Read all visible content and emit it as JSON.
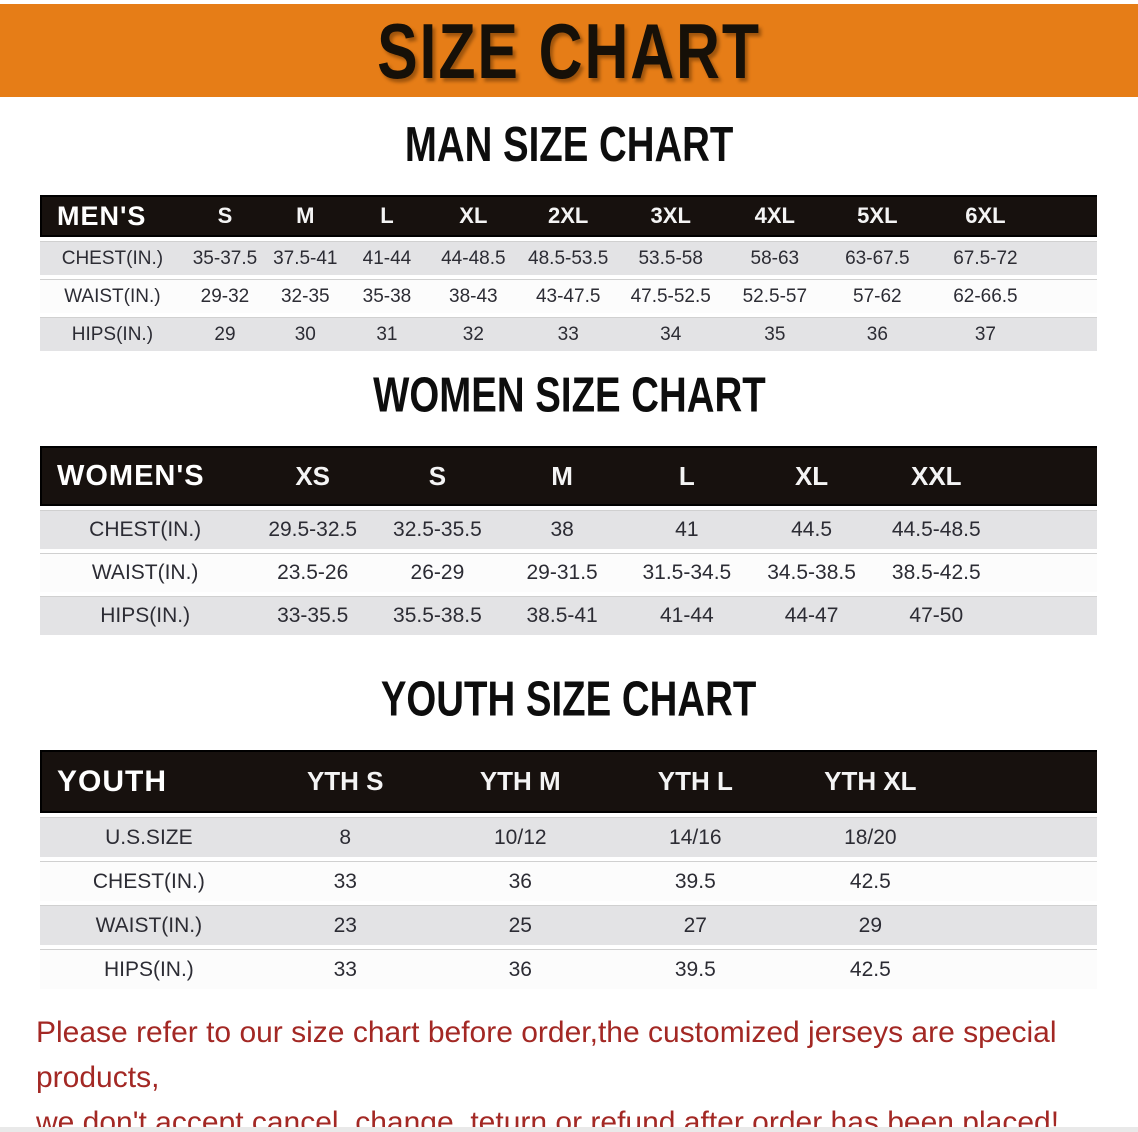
{
  "banner": {
    "title": "SIZE CHART"
  },
  "colors": {
    "banner_orange": "#e67d17",
    "header_bar_black": "#17110e",
    "row_gray": "#e3e3e5",
    "disclaimer_red": "#a32824"
  },
  "sections": [
    {
      "heading": "MAN SIZE CHART",
      "table": {
        "label": "MEN'S",
        "columns": [
          "S",
          "M",
          "L",
          "XL",
          "2XL",
          "3XL",
          "4XL",
          "5XL",
          "6XL"
        ],
        "rows": [
          {
            "label": "CHEST(IN.)",
            "values": [
              "35-37.5",
              "37.5-41",
              "41-44",
              "44-48.5",
              "48.5-53.5",
              "53.5-58",
              "58-63",
              "63-67.5",
              "67.5-72"
            ]
          },
          {
            "label": "WAIST(IN.)",
            "values": [
              "29-32",
              "32-35",
              "35-38",
              "38-43",
              "43-47.5",
              "47.5-52.5",
              "52.5-57",
              "57-62",
              "62-66.5"
            ]
          },
          {
            "label": "HIPS(IN.)",
            "values": [
              "29",
              "30",
              "31",
              "32",
              "33",
              "34",
              "35",
              "36",
              "37"
            ]
          }
        ]
      }
    },
    {
      "heading": "WOMEN SIZE CHART",
      "table": {
        "label": "WOMEN'S",
        "columns": [
          "XS",
          "S",
          "M",
          "L",
          "XL",
          "XXL"
        ],
        "rows": [
          {
            "label": "CHEST(IN.)",
            "values": [
              "29.5-32.5",
              "32.5-35.5",
              "38",
              "41",
              "44.5",
              "44.5-48.5"
            ]
          },
          {
            "label": "WAIST(IN.)",
            "values": [
              "23.5-26",
              "26-29",
              "29-31.5",
              "31.5-34.5",
              "34.5-38.5",
              "38.5-42.5"
            ]
          },
          {
            "label": "HIPS(IN.)",
            "values": [
              "33-35.5",
              "35.5-38.5",
              "38.5-41",
              "41-44",
              "44-47",
              "47-50"
            ]
          }
        ]
      }
    },
    {
      "heading": "YOUTH SIZE CHART",
      "table": {
        "label": "YOUTH",
        "columns": [
          "YTH S",
          "YTH M",
          "YTH L",
          "YTH XL"
        ],
        "rows": [
          {
            "label": "U.S.SIZE",
            "values": [
              "8",
              "10/12",
              "14/16",
              "18/20"
            ]
          },
          {
            "label": "CHEST(IN.)",
            "values": [
              "33",
              "36",
              "39.5",
              "42.5"
            ]
          },
          {
            "label": "WAIST(IN.)",
            "values": [
              "23",
              "25",
              "27",
              "29"
            ]
          },
          {
            "label": "HIPS(IN.)",
            "values": [
              "33",
              "36",
              "39.5",
              "42.5"
            ]
          }
        ]
      }
    }
  ],
  "footer": {
    "line1": "Please refer to our size chart before order,the customized jerseys are special products,",
    "line2": "we don't accept cancel, change, teturn or refund after order has been placed!"
  }
}
